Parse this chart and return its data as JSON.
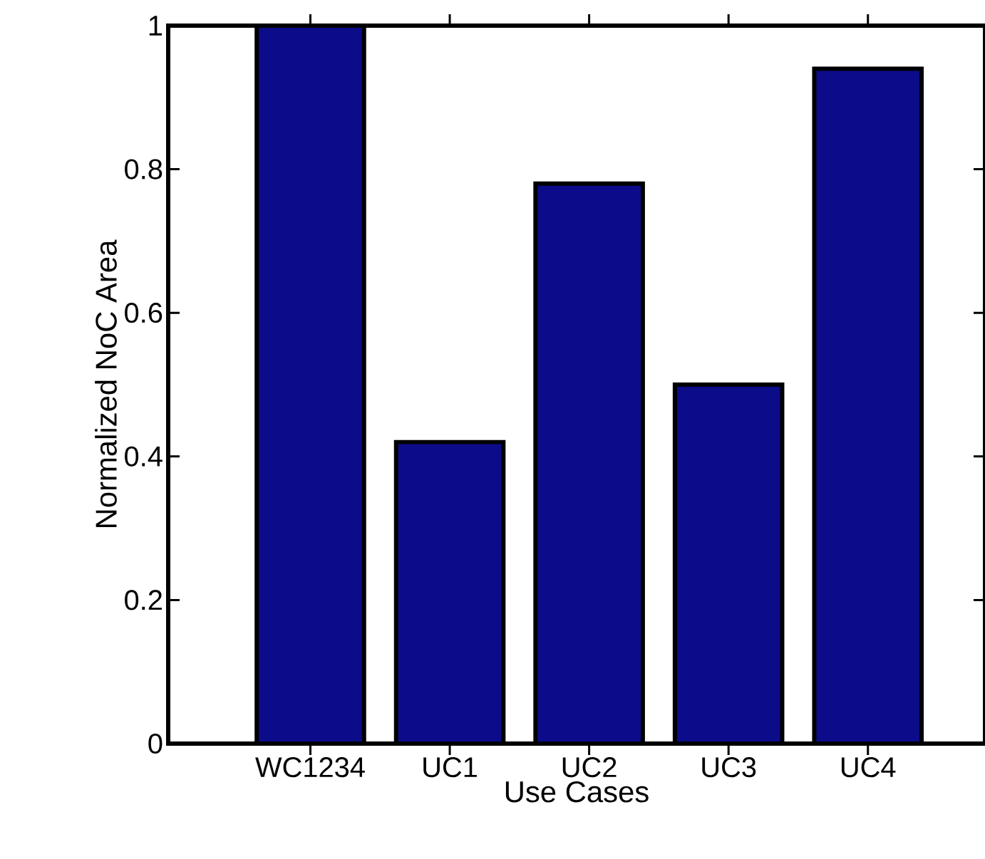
{
  "chart_data": {
    "type": "bar",
    "xlabel": "Use Cases",
    "ylabel": "Normalized NoC Area",
    "categories": [
      "WC1234",
      "UC1",
      "UC2",
      "UC3",
      "UC4"
    ],
    "values": [
      1.0,
      0.42,
      0.78,
      0.5,
      0.94
    ],
    "color": "#0c0c8a",
    "ylim": [
      0,
      1
    ],
    "yticks": [
      0,
      0.2,
      0.4,
      0.6,
      0.8,
      1
    ],
    "grid": false
  }
}
